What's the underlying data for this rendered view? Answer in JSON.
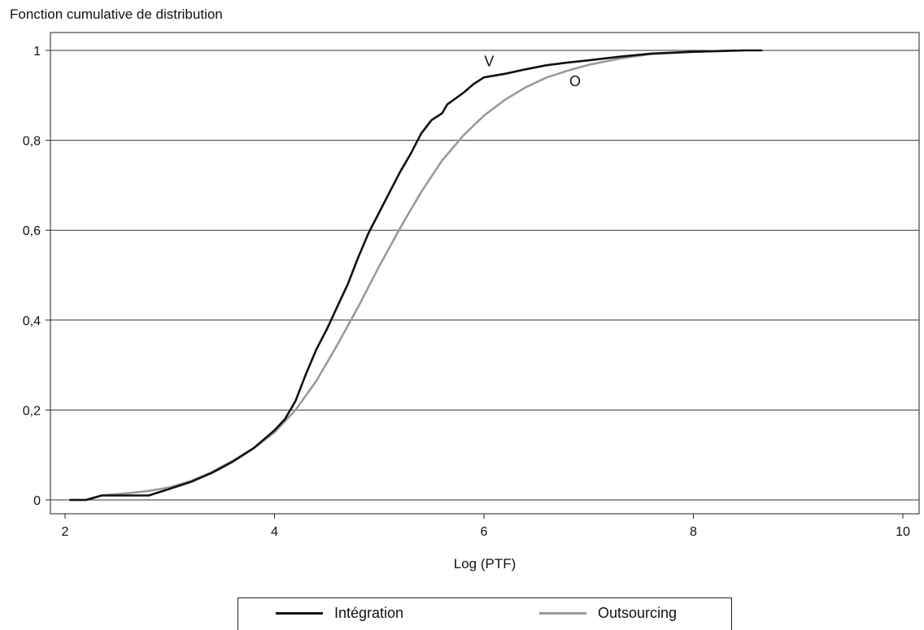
{
  "chart_data": {
    "type": "line",
    "ylabel": "Fonction cumulative de distribution",
    "xlabel": "Log (PTF)",
    "xlim": [
      2,
      10
    ],
    "ylim": [
      0,
      1
    ],
    "x_ticks": [
      2,
      4,
      6,
      8,
      10
    ],
    "x_tick_labels": [
      "2",
      "4",
      "6",
      "8",
      "10"
    ],
    "y_ticks": [
      0,
      0.2,
      0.4,
      0.6,
      0.8,
      1
    ],
    "y_tick_labels": [
      "0",
      "0,2",
      "0,4",
      "0,6",
      "0,8",
      "1"
    ],
    "grid": "horizontal",
    "legend_position": "bottom",
    "annotations": [
      {
        "text": "V",
        "x": 6.05,
        "y": 0.965
      },
      {
        "text": "O",
        "x": 6.87,
        "y": 0.92
      }
    ],
    "series": [
      {
        "name": "Intégration",
        "color": "#111111",
        "points": [
          [
            2.05,
            0.0
          ],
          [
            2.2,
            0.0
          ],
          [
            2.35,
            0.01
          ],
          [
            2.6,
            0.01
          ],
          [
            2.8,
            0.01
          ],
          [
            3.0,
            0.025
          ],
          [
            3.2,
            0.04
          ],
          [
            3.4,
            0.06
          ],
          [
            3.6,
            0.085
          ],
          [
            3.8,
            0.115
          ],
          [
            4.0,
            0.155
          ],
          [
            4.1,
            0.18
          ],
          [
            4.2,
            0.22
          ],
          [
            4.3,
            0.28
          ],
          [
            4.4,
            0.335
          ],
          [
            4.5,
            0.38
          ],
          [
            4.6,
            0.43
          ],
          [
            4.7,
            0.48
          ],
          [
            4.8,
            0.54
          ],
          [
            4.9,
            0.595
          ],
          [
            5.0,
            0.64
          ],
          [
            5.1,
            0.685
          ],
          [
            5.2,
            0.73
          ],
          [
            5.3,
            0.77
          ],
          [
            5.4,
            0.815
          ],
          [
            5.5,
            0.845
          ],
          [
            5.6,
            0.86
          ],
          [
            5.65,
            0.88
          ],
          [
            5.8,
            0.905
          ],
          [
            5.9,
            0.925
          ],
          [
            6.0,
            0.94
          ],
          [
            6.2,
            0.948
          ],
          [
            6.4,
            0.958
          ],
          [
            6.6,
            0.967
          ],
          [
            6.8,
            0.973
          ],
          [
            7.0,
            0.978
          ],
          [
            7.3,
            0.986
          ],
          [
            7.6,
            0.993
          ],
          [
            8.0,
            0.997
          ],
          [
            8.5,
            1.0
          ],
          [
            8.65,
            1.0
          ]
        ]
      },
      {
        "name": "Outsourcing",
        "color": "#9a9a9a",
        "points": [
          [
            2.05,
            0.0
          ],
          [
            2.2,
            0.0
          ],
          [
            2.35,
            0.01
          ],
          [
            2.6,
            0.015
          ],
          [
            2.8,
            0.02
          ],
          [
            3.0,
            0.028
          ],
          [
            3.2,
            0.042
          ],
          [
            3.4,
            0.062
          ],
          [
            3.6,
            0.087
          ],
          [
            3.8,
            0.115
          ],
          [
            4.0,
            0.15
          ],
          [
            4.2,
            0.2
          ],
          [
            4.4,
            0.265
          ],
          [
            4.6,
            0.345
          ],
          [
            4.8,
            0.43
          ],
          [
            5.0,
            0.52
          ],
          [
            5.2,
            0.605
          ],
          [
            5.4,
            0.685
          ],
          [
            5.6,
            0.755
          ],
          [
            5.8,
            0.81
          ],
          [
            6.0,
            0.855
          ],
          [
            6.2,
            0.89
          ],
          [
            6.4,
            0.918
          ],
          [
            6.6,
            0.94
          ],
          [
            6.8,
            0.955
          ],
          [
            7.0,
            0.968
          ],
          [
            7.3,
            0.982
          ],
          [
            7.6,
            0.992
          ],
          [
            8.0,
            0.997
          ],
          [
            8.4,
            1.0
          ]
        ]
      }
    ]
  }
}
